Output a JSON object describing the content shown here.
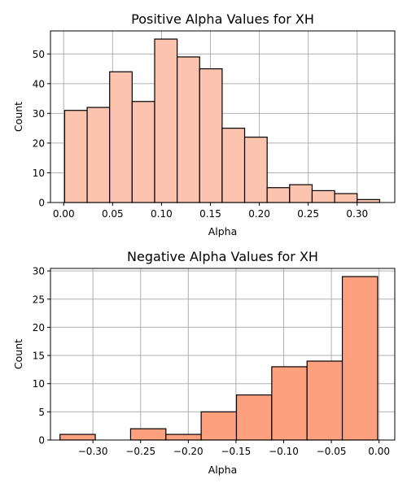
{
  "chart_data": [
    {
      "type": "bar",
      "title": "Positive Alpha Values for XH",
      "xlabel": "Alpha",
      "ylabel": "Count",
      "bar_color": "#fcc4ae",
      "xlim": [
        -0.0135,
        0.3385
      ],
      "ylim": [
        0,
        57.75
      ],
      "xticks": [
        0.0,
        0.05,
        0.1,
        0.15,
        0.2,
        0.25,
        0.3
      ],
      "xtick_labels": [
        "0.00",
        "0.05",
        "0.10",
        "0.15",
        "0.20",
        "0.25",
        "0.30"
      ],
      "yticks": [
        0,
        10,
        20,
        30,
        40,
        50
      ],
      "ytick_labels": [
        "0",
        "10",
        "20",
        "30",
        "40",
        "50"
      ],
      "grid": true,
      "bin_edges": [
        0.001,
        0.024,
        0.047,
        0.07,
        0.093,
        0.116,
        0.139,
        0.162,
        0.185,
        0.208,
        0.231,
        0.254,
        0.277,
        0.3,
        0.323
      ],
      "values": [
        31,
        32,
        44,
        34,
        55,
        49,
        45,
        25,
        22,
        5,
        6,
        4,
        3,
        1
      ]
    },
    {
      "type": "bar",
      "title": "Negative Alpha Values for XH",
      "xlabel": "Alpha",
      "ylabel": "Count",
      "bar_color": "#fca07e",
      "xlim": [
        -0.3445,
        0.0165
      ],
      "ylim": [
        0,
        30.45
      ],
      "xticks": [
        -0.3,
        -0.25,
        -0.2,
        -0.15,
        -0.1,
        -0.05,
        0.0
      ],
      "xtick_labels": [
        "−0.30",
        "−0.25",
        "−0.20",
        "−0.15",
        "−0.10",
        "−0.05",
        "0.00"
      ],
      "yticks": [
        0,
        5,
        10,
        15,
        20,
        25,
        30
      ],
      "ytick_labels": [
        "0",
        "5",
        "10",
        "15",
        "20",
        "25",
        "30"
      ],
      "grid": true,
      "bin_edges": [
        -0.3345,
        -0.2975,
        -0.2605,
        -0.2235,
        -0.1865,
        -0.1495,
        -0.1125,
        -0.0755,
        -0.0385,
        -0.0015
      ],
      "values": [
        1,
        0,
        2,
        1,
        5,
        8,
        13,
        14,
        29
      ]
    }
  ]
}
